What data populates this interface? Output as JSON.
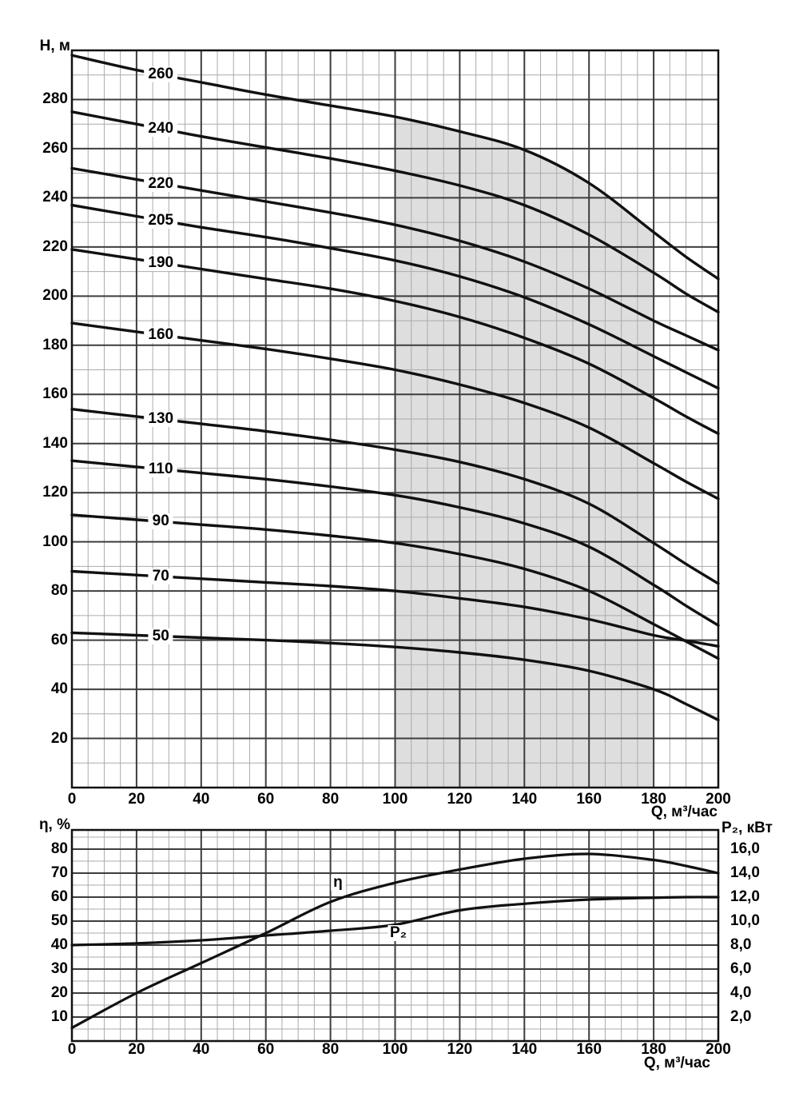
{
  "colors": {
    "curve": "#111111",
    "frame": "#111111",
    "grid_major": "#3d3d3d",
    "grid_minor": "#ababab",
    "shade": "#dedede"
  },
  "chart_data": [
    {
      "type": "line",
      "title": "",
      "ylabel": "H, м",
      "xlabel": "Q, м³/час",
      "xlim": [
        0,
        200
      ],
      "ylim": [
        0,
        300
      ],
      "x_major": 20,
      "x_minor": 5,
      "y_major": 20,
      "y_minor": 10,
      "grid": "on",
      "x_ticks": [
        0,
        20,
        40,
        60,
        80,
        100,
        120,
        140,
        160,
        180,
        200
      ],
      "y_ticks": [
        20,
        40,
        60,
        80,
        100,
        120,
        140,
        160,
        180,
        200,
        220,
        240,
        260,
        280
      ],
      "q": [
        0,
        20,
        40,
        60,
        80,
        100,
        120,
        140,
        160,
        180,
        190,
        200
      ],
      "label_q": 27.5,
      "series": [
        {
          "label": "260",
          "values": [
            298,
            292,
            287,
            282,
            277.5,
            273,
            267,
            259.5,
            246,
            226,
            216,
            207
          ]
        },
        {
          "label": "240",
          "values": [
            275,
            270,
            265,
            260.5,
            256,
            251,
            245,
            237,
            225,
            209.5,
            201,
            193.5
          ]
        },
        {
          "label": "220",
          "values": [
            252,
            247.5,
            243,
            238.5,
            234,
            229,
            222.5,
            214,
            203,
            190,
            184,
            178
          ]
        },
        {
          "label": "205",
          "values": [
            237,
            232.5,
            228,
            224,
            219.5,
            214.5,
            208,
            199.5,
            188.5,
            175.5,
            169,
            162.5
          ]
        },
        {
          "label": "190",
          "values": [
            219,
            215,
            211,
            207,
            203,
            198,
            191.5,
            183,
            172.5,
            158.5,
            151,
            144
          ]
        },
        {
          "label": "160",
          "values": [
            189,
            185.5,
            182,
            178.5,
            174.5,
            170,
            164,
            156.5,
            146.5,
            132,
            124.5,
            117.5
          ]
        },
        {
          "label": "130",
          "values": [
            154,
            151,
            148,
            145,
            141.5,
            137.5,
            132.5,
            125.5,
            115.5,
            99.5,
            91,
            83
          ]
        },
        {
          "label": "110",
          "values": [
            133,
            130.5,
            128,
            125.5,
            122.5,
            119,
            114,
            107.5,
            98,
            82.5,
            74,
            66
          ]
        },
        {
          "label": "90",
          "values": [
            111,
            109,
            107,
            105,
            102.5,
            99.5,
            95,
            89,
            80,
            66.5,
            59.5,
            52.5
          ]
        },
        {
          "label": "70",
          "values": [
            88,
            86.5,
            85,
            83.5,
            82,
            80,
            77,
            73.5,
            68.5,
            62,
            59.8,
            57.5
          ]
        },
        {
          "label": "50",
          "values": [
            63,
            62,
            61,
            60,
            58.8,
            57.2,
            55,
            52,
            47.5,
            40,
            34,
            27.5
          ]
        }
      ],
      "shaded_region": {
        "q_from": 100,
        "q_to": 180
      }
    },
    {
      "type": "line",
      "title": "",
      "ylabel_left": "η, %",
      "ylabel_right": "P₂, кВт",
      "xlabel": "Q, м³/час",
      "xlim": [
        0,
        200
      ],
      "ylim_left": [
        0,
        88
      ],
      "right_axis_units_per_left": 5,
      "x_major": 20,
      "x_minor": 5,
      "y_major_left": 10,
      "y_minor_left": 5,
      "grid": "on",
      "x_ticks": [
        0,
        20,
        40,
        60,
        80,
        100,
        120,
        140,
        160,
        180,
        200
      ],
      "y_ticks_left": [
        80,
        70,
        60,
        50,
        40,
        30,
        20,
        10
      ],
      "y_ticks_right": [
        {
          "kw": 16,
          "label": "16,0"
        },
        {
          "kw": 14,
          "label": "14,0"
        },
        {
          "kw": 12,
          "label": "12,0"
        },
        {
          "kw": 10,
          "label": "10,0"
        },
        {
          "kw": 8,
          "label": "8,0"
        },
        {
          "kw": 6,
          "label": "6,0"
        },
        {
          "kw": 4,
          "label": "4,0"
        },
        {
          "kw": 2,
          "label": "2,0"
        }
      ],
      "q": [
        0,
        20,
        40,
        60,
        80,
        100,
        120,
        140,
        160,
        180,
        190,
        200
      ],
      "series": [
        {
          "label": "η",
          "axis": "left",
          "values": [
            5.5,
            20,
            32.5,
            45,
            58,
            66,
            71.5,
            76,
            78,
            75.5,
            73,
            70
          ]
        },
        {
          "label": "P₂",
          "axis": "right",
          "values_kw": [
            8.0,
            8.15,
            8.4,
            8.8,
            9.2,
            9.7,
            10.9,
            11.45,
            11.8,
            11.95,
            12.0,
            12.0
          ]
        }
      ],
      "annotations": [
        {
          "text": "η",
          "q": 82.3,
          "u": 66
        },
        {
          "text": "P₂",
          "q": 101,
          "u": 45
        }
      ]
    }
  ]
}
